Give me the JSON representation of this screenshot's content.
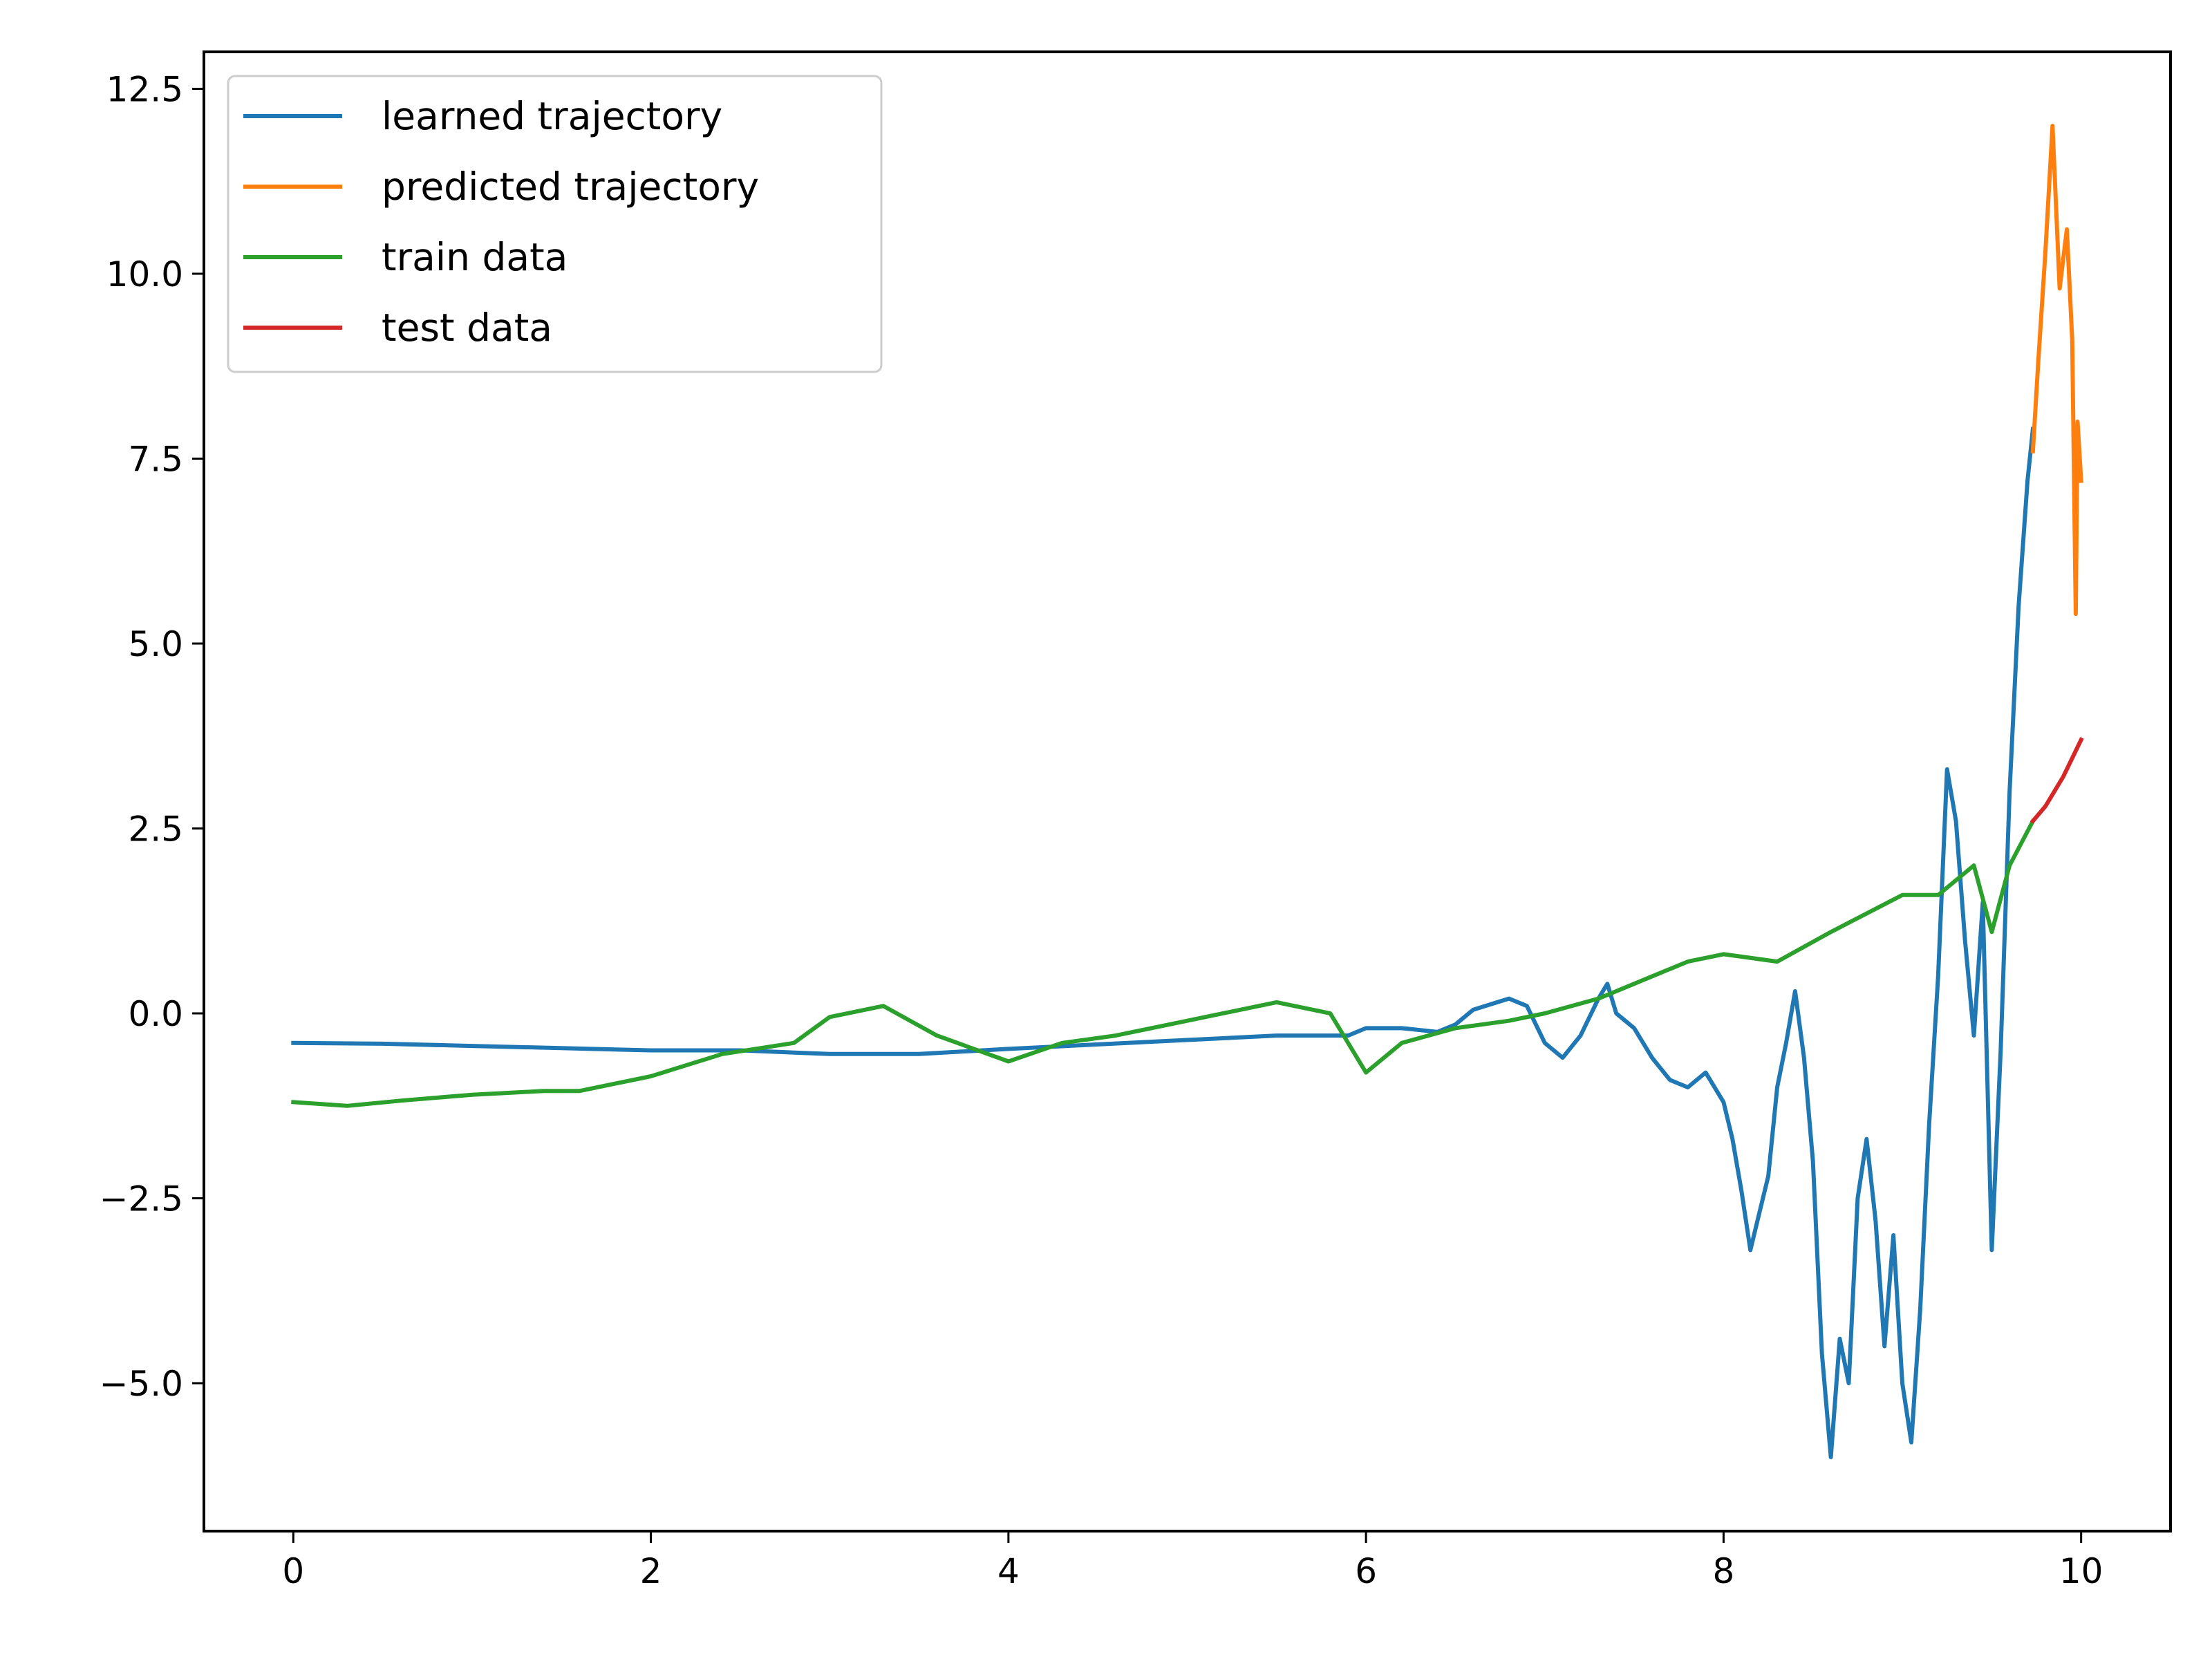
{
  "chart_data": {
    "type": "line",
    "title": "",
    "xlabel": "",
    "ylabel": "",
    "xlim": [
      -0.5,
      10.5
    ],
    "ylim": [
      -7.0,
      13.0
    ],
    "grid": false,
    "legend_position": "top-left",
    "x_ticks": [
      {
        "value": 0,
        "label": "0"
      },
      {
        "value": 2,
        "label": "2"
      },
      {
        "value": 4,
        "label": "4"
      },
      {
        "value": 6,
        "label": "6"
      },
      {
        "value": 8,
        "label": "8"
      },
      {
        "value": 10,
        "label": "10"
      }
    ],
    "y_ticks": [
      {
        "value": -5.0,
        "label": "−5.0"
      },
      {
        "value": -2.5,
        "label": "−2.5"
      },
      {
        "value": 0.0,
        "label": "0.0"
      },
      {
        "value": 2.5,
        "label": "2.5"
      },
      {
        "value": 5.0,
        "label": "5.0"
      },
      {
        "value": 7.5,
        "label": "7.5"
      },
      {
        "value": 10.0,
        "label": "10.0"
      },
      {
        "value": 12.5,
        "label": "12.5"
      }
    ],
    "series": [
      {
        "name": "learned trajectory",
        "color": "#1f77b4",
        "points": [
          [
            0.0,
            -0.4
          ],
          [
            0.5,
            -0.41
          ],
          [
            1.0,
            -0.44
          ],
          [
            1.5,
            -0.47
          ],
          [
            2.0,
            -0.5
          ],
          [
            2.5,
            -0.5
          ],
          [
            3.0,
            -0.55
          ],
          [
            3.5,
            -0.55
          ],
          [
            4.0,
            -0.48
          ],
          [
            4.5,
            -0.42
          ],
          [
            5.0,
            -0.36
          ],
          [
            5.5,
            -0.3
          ],
          [
            5.9,
            -0.3
          ],
          [
            6.0,
            -0.2
          ],
          [
            6.2,
            -0.2
          ],
          [
            6.4,
            -0.25
          ],
          [
            6.5,
            -0.15
          ],
          [
            6.6,
            0.05
          ],
          [
            6.8,
            0.2
          ],
          [
            6.9,
            0.1
          ],
          [
            7.0,
            -0.4
          ],
          [
            7.1,
            -0.6
          ],
          [
            7.2,
            -0.3
          ],
          [
            7.3,
            0.2
          ],
          [
            7.35,
            0.4
          ],
          [
            7.4,
            0.0
          ],
          [
            7.5,
            -0.2
          ],
          [
            7.6,
            -0.6
          ],
          [
            7.7,
            -0.9
          ],
          [
            7.8,
            -1.0
          ],
          [
            7.9,
            -0.8
          ],
          [
            8.0,
            -1.2
          ],
          [
            8.05,
            -1.7
          ],
          [
            8.1,
            -2.4
          ],
          [
            8.15,
            -3.2
          ],
          [
            8.2,
            -2.7
          ],
          [
            8.25,
            -2.2
          ],
          [
            8.3,
            -1.0
          ],
          [
            8.35,
            -0.4
          ],
          [
            8.4,
            0.3
          ],
          [
            8.45,
            -0.6
          ],
          [
            8.5,
            -2.0
          ],
          [
            8.55,
            -4.6
          ],
          [
            8.6,
            -6.0
          ],
          [
            8.65,
            -4.4
          ],
          [
            8.7,
            -5.0
          ],
          [
            8.75,
            -2.5
          ],
          [
            8.8,
            -1.7
          ],
          [
            8.85,
            -2.8
          ],
          [
            8.9,
            -4.5
          ],
          [
            8.95,
            -3.0
          ],
          [
            9.0,
            -5.0
          ],
          [
            9.05,
            -5.8
          ],
          [
            9.1,
            -4.0
          ],
          [
            9.15,
            -1.5
          ],
          [
            9.2,
            0.5
          ],
          [
            9.25,
            3.3
          ],
          [
            9.3,
            2.6
          ],
          [
            9.35,
            1.0
          ],
          [
            9.4,
            -0.3
          ],
          [
            9.45,
            1.5
          ],
          [
            9.5,
            -3.2
          ],
          [
            9.55,
            -0.5
          ],
          [
            9.6,
            3.0
          ],
          [
            9.65,
            5.5
          ],
          [
            9.7,
            7.2
          ],
          [
            9.73,
            7.9
          ]
        ]
      },
      {
        "name": "predicted trajectory",
        "color": "#ff7f0e",
        "points": [
          [
            9.73,
            7.6
          ],
          [
            9.76,
            8.8
          ],
          [
            9.8,
            10.3
          ],
          [
            9.84,
            12.0
          ],
          [
            9.88,
            9.8
          ],
          [
            9.92,
            10.6
          ],
          [
            9.95,
            9.1
          ],
          [
            9.97,
            5.4
          ],
          [
            9.98,
            8.0
          ],
          [
            10.0,
            7.2
          ]
        ]
      },
      {
        "name": "train data",
        "color": "#2ca02c",
        "points": [
          [
            0.0,
            -1.2
          ],
          [
            0.3,
            -1.25
          ],
          [
            0.6,
            -1.18
          ],
          [
            1.0,
            -1.1
          ],
          [
            1.4,
            -1.05
          ],
          [
            1.6,
            -1.05
          ],
          [
            2.0,
            -0.85
          ],
          [
            2.4,
            -0.55
          ],
          [
            2.8,
            -0.4
          ],
          [
            3.0,
            -0.05
          ],
          [
            3.3,
            0.1
          ],
          [
            3.6,
            -0.3
          ],
          [
            4.0,
            -0.65
          ],
          [
            4.3,
            -0.4
          ],
          [
            4.6,
            -0.3
          ],
          [
            5.0,
            -0.1
          ],
          [
            5.5,
            0.15
          ],
          [
            5.8,
            0.0
          ],
          [
            6.0,
            -0.8
          ],
          [
            6.2,
            -0.4
          ],
          [
            6.5,
            -0.2
          ],
          [
            6.8,
            -0.1
          ],
          [
            7.0,
            0.0
          ],
          [
            7.3,
            0.2
          ],
          [
            7.5,
            0.4
          ],
          [
            7.8,
            0.7
          ],
          [
            8.0,
            0.8
          ],
          [
            8.3,
            0.7
          ],
          [
            8.6,
            1.1
          ],
          [
            9.0,
            1.6
          ],
          [
            9.2,
            1.6
          ],
          [
            9.4,
            2.0
          ],
          [
            9.5,
            1.1
          ],
          [
            9.6,
            2.0
          ],
          [
            9.73,
            2.6
          ]
        ]
      },
      {
        "name": "test data",
        "color": "#d62728",
        "points": [
          [
            9.73,
            2.6
          ],
          [
            9.8,
            2.8
          ],
          [
            9.9,
            3.2
          ],
          [
            10.0,
            3.7
          ]
        ]
      }
    ]
  }
}
